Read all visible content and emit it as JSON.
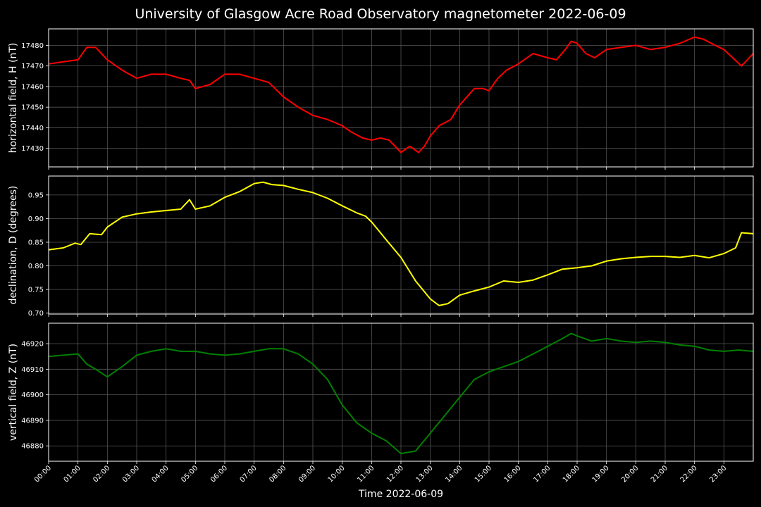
{
  "title": "University of Glasgow Acre Road Observatory magnetometer 2022-06-09",
  "chart_data": [
    {
      "type": "line",
      "ylabel": "horizontal field, H (nT)",
      "color": "#ff0000",
      "ylim": [
        17421,
        17488
      ],
      "yticks": [
        17430,
        17440,
        17450,
        17460,
        17470,
        17480
      ],
      "grid": true,
      "x": [
        0,
        0.5,
        1,
        1.3,
        1.6,
        2,
        2.5,
        3,
        3.5,
        4,
        4.5,
        4.8,
        5,
        5.5,
        6,
        6.5,
        7,
        7.5,
        8,
        8.5,
        9,
        9.5,
        10,
        10.3,
        10.7,
        11,
        11.3,
        11.6,
        12,
        12.3,
        12.6,
        12.8,
        13,
        13.3,
        13.7,
        14,
        14.5,
        14.8,
        15,
        15.3,
        15.6,
        16,
        16.5,
        17,
        17.3,
        17.6,
        17.8,
        18,
        18.3,
        18.6,
        19,
        19.5,
        20,
        20.5,
        21,
        21.5,
        22,
        22.3,
        22.7,
        23,
        23.3,
        23.6,
        24
      ],
      "series": [
        {
          "values": [
            17471,
            17472,
            17473,
            17479,
            17479,
            17473,
            17468,
            17464,
            17466,
            17466,
            17464,
            17463,
            17459,
            17461,
            17466,
            17466,
            17464,
            17462,
            17455,
            17450,
            17446,
            17444,
            17441,
            17438,
            17435,
            17434,
            17435,
            17434,
            17428,
            17431,
            17428,
            17431,
            17436,
            17441,
            17444,
            17451,
            17459,
            17459,
            17458,
            17464,
            17468,
            17471,
            17476,
            17474,
            17473,
            17478,
            17482,
            17481,
            17476,
            17474,
            17478,
            17479,
            17480,
            17478,
            17479,
            17481,
            17484,
            17483,
            17480,
            17478,
            17474,
            17470,
            17476
          ]
        }
      ]
    },
    {
      "type": "line",
      "ylabel": "declination, D (degrees)",
      "color": "#ffff00",
      "ylim": [
        0.698,
        0.99
      ],
      "yticks": [
        0.7,
        0.75,
        0.8,
        0.85,
        0.9,
        0.95
      ],
      "grid": true,
      "x": [
        0,
        0.5,
        0.9,
        1.1,
        1.4,
        1.8,
        2,
        2.5,
        3,
        3.5,
        4,
        4.5,
        4.8,
        5,
        5.5,
        6,
        6.5,
        7,
        7.3,
        7.6,
        8,
        8.5,
        9,
        9.5,
        10,
        10.5,
        10.8,
        11,
        11.5,
        12,
        12.5,
        13,
        13.3,
        13.6,
        14,
        14.5,
        15,
        15.5,
        16,
        16.5,
        17,
        17.5,
        18,
        18.5,
        19,
        19.5,
        20,
        20.5,
        21,
        21.5,
        22,
        22.5,
        23,
        23.4,
        23.6,
        24
      ],
      "series": [
        {
          "values": [
            0.834,
            0.838,
            0.848,
            0.845,
            0.868,
            0.866,
            0.882,
            0.903,
            0.91,
            0.914,
            0.917,
            0.92,
            0.94,
            0.92,
            0.927,
            0.945,
            0.957,
            0.974,
            0.977,
            0.972,
            0.97,
            0.962,
            0.955,
            0.943,
            0.927,
            0.912,
            0.905,
            0.893,
            0.855,
            0.818,
            0.768,
            0.73,
            0.716,
            0.72,
            0.738,
            0.747,
            0.755,
            0.768,
            0.765,
            0.77,
            0.781,
            0.793,
            0.796,
            0.8,
            0.81,
            0.815,
            0.818,
            0.82,
            0.82,
            0.818,
            0.822,
            0.817,
            0.826,
            0.838,
            0.87,
            0.868
          ]
        }
      ]
    },
    {
      "type": "line",
      "ylabel": "vertical field, Z (nT)",
      "color": "#008000",
      "ylim": [
        46874,
        46928
      ],
      "yticks": [
        46880,
        46890,
        46900,
        46910,
        46920
      ],
      "grid": true,
      "x": [
        0,
        0.5,
        1,
        1.3,
        1.6,
        2,
        2.5,
        3,
        3.5,
        4,
        4.5,
        5,
        5.5,
        6,
        6.5,
        7,
        7.5,
        8,
        8.5,
        9,
        9.5,
        10,
        10.5,
        11,
        11.5,
        12,
        12.5,
        13,
        13.5,
        14,
        14.5,
        15,
        15.5,
        16,
        16.5,
        17,
        17.5,
        17.8,
        18,
        18.5,
        19,
        19.5,
        20,
        20.5,
        21,
        21.5,
        22,
        22.5,
        23,
        23.5,
        24
      ],
      "series": [
        {
          "values": [
            46915,
            46915.5,
            46916,
            46912,
            46910,
            46907,
            46911,
            46915.5,
            46917,
            46918,
            46917,
            46917,
            46916,
            46915.5,
            46916,
            46917,
            46918,
            46918,
            46916,
            46912,
            46906,
            46896,
            46889,
            46885,
            46882,
            46877,
            46878,
            46885,
            46892,
            46899,
            46906,
            46909,
            46911,
            46913,
            46916,
            46919,
            46922,
            46924,
            46923,
            46921,
            46922,
            46921,
            46920.5,
            46921,
            46920.5,
            46919.5,
            46919,
            46917.5,
            46917,
            46917.5,
            46917
          ]
        }
      ]
    }
  ],
  "xtick_labels": [
    "00:00",
    "01:00",
    "02:00",
    "03:00",
    "04:00",
    "05:00",
    "06:00",
    "07:00",
    "08:00",
    "09:00",
    "10:00",
    "11:00",
    "12:00",
    "13:00",
    "14:00",
    "15:00",
    "16:00",
    "17:00",
    "18:00",
    "19:00",
    "20:00",
    "21:00",
    "22:00",
    "23:00"
  ],
  "xlabel": "Time 2022-06-09",
  "xlim": [
    0,
    24
  ]
}
